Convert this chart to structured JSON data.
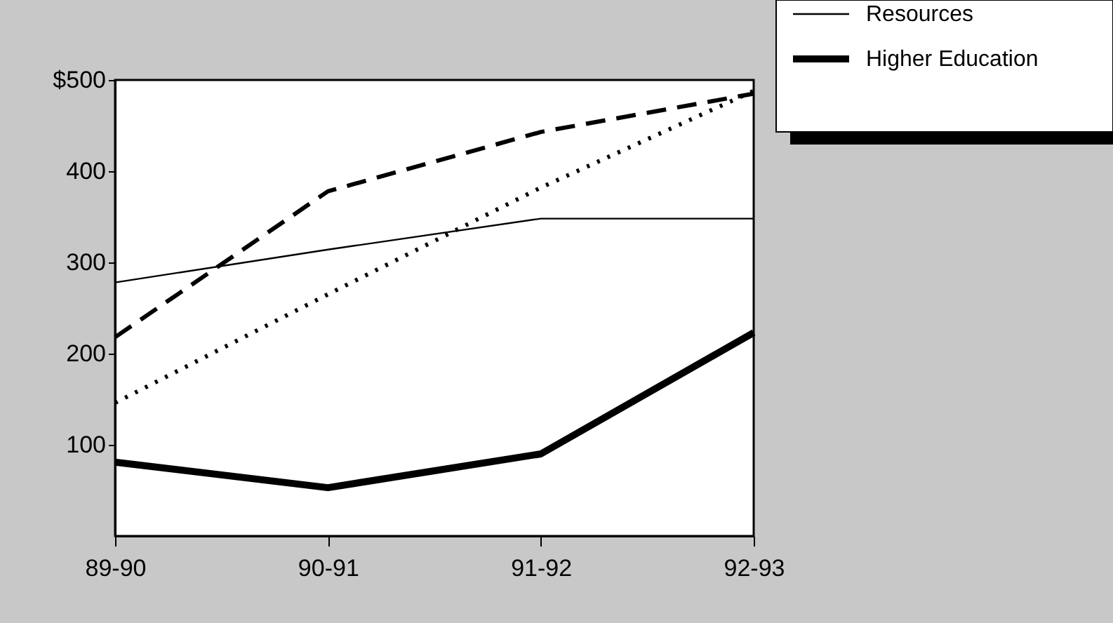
{
  "chart_data": {
    "type": "line",
    "categories": [
      "89-90",
      "90-91",
      "91-92",
      "92-93"
    ],
    "series": [
      {
        "color": "#000000",
        "line_style": "dashed",
        "values": [
          218,
          378,
          443,
          485
        ]
      },
      {
        "color": "#000000",
        "line_style": "dotted",
        "values": [
          146,
          265,
          382,
          488
        ]
      },
      {
        "name": "Resources",
        "color": "#000000",
        "line_style": "solid",
        "values": [
          278,
          314,
          348,
          348
        ]
      },
      {
        "name": "Higher Education",
        "color": "#000000",
        "line_style": "solid",
        "values": [
          81,
          53,
          90,
          223
        ]
      }
    ],
    "ylim": [
      0,
      500
    ],
    "yticks": [
      100,
      200,
      300,
      400,
      {
        "value": 500,
        "label": "$500"
      }
    ],
    "grid": false,
    "legend": "top right",
    "marker": "none"
  }
}
